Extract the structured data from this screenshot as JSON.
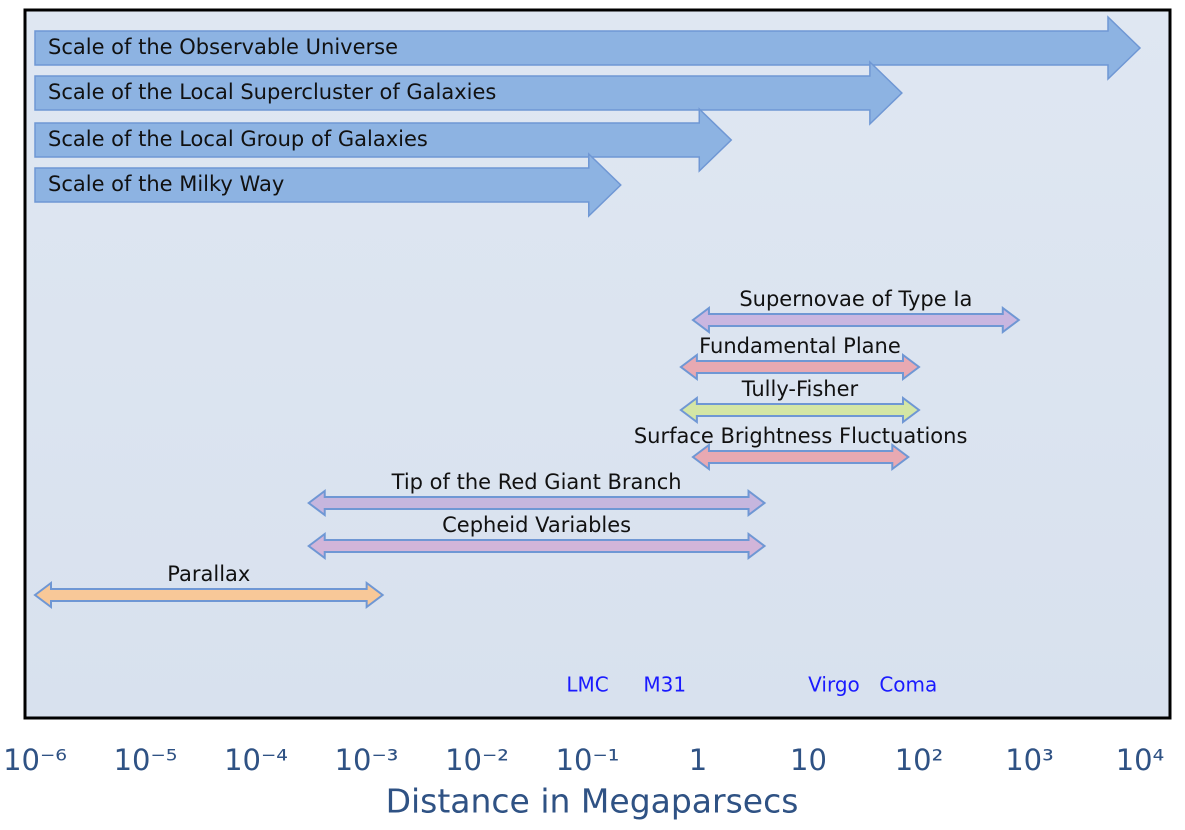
{
  "chart_data": {
    "type": "range",
    "xscale": "log",
    "xlabel": "Distance in Megaparsecs",
    "xlim": [
      1e-06,
      10000
    ],
    "xticks": [
      {
        "value": 1e-06,
        "label": "10⁻⁶"
      },
      {
        "value": 1e-05,
        "label": "10⁻⁵"
      },
      {
        "value": 0.0001,
        "label": "10⁻⁴"
      },
      {
        "value": 0.001,
        "label": "10⁻³"
      },
      {
        "value": 0.01,
        "label": "10⁻²"
      },
      {
        "value": 0.1,
        "label": "10⁻¹"
      },
      1,
      10,
      {
        "value": 100,
        "label": "10²"
      },
      {
        "value": 1000,
        "label": "10³"
      },
      {
        "value": 10000,
        "label": "10⁴"
      }
    ],
    "scales": [
      {
        "name": "Scale of the Observable Universe",
        "start": 1e-06,
        "end": 10000,
        "color": "#8db3e2"
      },
      {
        "name": "Scale of the Local Supercluster of Galaxies",
        "start": 1e-06,
        "end": 70,
        "color": "#8db3e2"
      },
      {
        "name": "Scale of the Local Group of Galaxies",
        "start": 1e-06,
        "end": 2,
        "color": "#8db3e2"
      },
      {
        "name": "Scale of the Milky Way",
        "start": 1e-06,
        "end": 0.2,
        "color": "#8db3e2"
      }
    ],
    "methods": [
      {
        "name": "Supernovae of Type Ia",
        "start": 0.9,
        "end": 800,
        "color": "#c9b6e0"
      },
      {
        "name": "Fundamental Plane",
        "start": 0.7,
        "end": 100,
        "color": "#e8a9b2"
      },
      {
        "name": "Tully-Fisher",
        "start": 0.7,
        "end": 100,
        "color": "#d4e6a5"
      },
      {
        "name": "Surface Brightness Fluctuations",
        "start": 0.9,
        "end": 80,
        "color": "#e8a9b2"
      },
      {
        "name": "Tip of the Red Giant Branch",
        "start": 0.0003,
        "end": 4,
        "color": "#c6b6de"
      },
      {
        "name": "Cepheid Variables",
        "start": 0.0003,
        "end": 4,
        "color": "#d2b5d9"
      },
      {
        "name": "Parallax",
        "start": 1e-06,
        "end": 0.0014,
        "color": "#f8c898"
      }
    ],
    "annotations": [
      {
        "text": "LMC",
        "x": 0.1
      },
      {
        "text": "M31",
        "x": 0.5
      },
      {
        "text": "Virgo",
        "x": 17
      },
      {
        "text": "Coma",
        "x": 80
      }
    ]
  }
}
